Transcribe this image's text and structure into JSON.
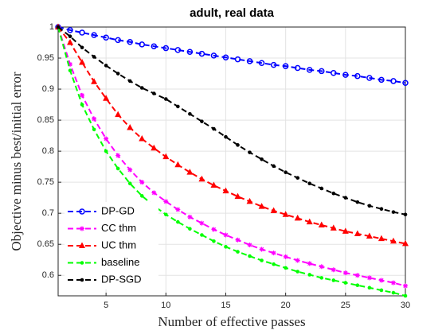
{
  "chart_data": {
    "type": "line",
    "title": "adult, real data",
    "x_label": "Number of effective passes",
    "y_label": "Objective minus best/initial error",
    "x": [
      1,
      2,
      3,
      4,
      5,
      6,
      7,
      8,
      9,
      10,
      11,
      12,
      13,
      14,
      15,
      16,
      17,
      18,
      19,
      20,
      21,
      22,
      23,
      24,
      25,
      26,
      27,
      28,
      29,
      30
    ],
    "xlim": [
      1,
      30
    ],
    "xticks": [
      5,
      10,
      15,
      20,
      25,
      30
    ],
    "ylim": [
      0.567,
      1
    ],
    "yticks": [
      0.6,
      0.65,
      0.7,
      0.75,
      0.8,
      0.85,
      0.9,
      0.95,
      1
    ],
    "grid": true,
    "legend": "lower left",
    "series": [
      {
        "name": "DP-GD",
        "color": "#0000ff",
        "marker": "circle",
        "values": [
          1,
          0.995,
          0.991,
          0.987,
          0.983,
          0.979,
          0.976,
          0.972,
          0.969,
          0.966,
          0.963,
          0.96,
          0.957,
          0.954,
          0.951,
          0.948,
          0.945,
          0.942,
          0.939,
          0.937,
          0.934,
          0.931,
          0.929,
          0.926,
          0.923,
          0.921,
          0.918,
          0.915,
          0.913,
          0.91
        ]
      },
      {
        "name": "CC thm",
        "color": "#ff00ff",
        "marker": "star",
        "values": [
          1,
          0.94,
          0.89,
          0.852,
          0.82,
          0.793,
          0.77,
          0.75,
          0.733,
          0.719,
          0.706,
          0.694,
          0.684,
          0.674,
          0.665,
          0.657,
          0.649,
          0.642,
          0.636,
          0.63,
          0.624,
          0.619,
          0.614,
          0.609,
          0.604,
          0.6,
          0.596,
          0.592,
          0.588,
          0.583
        ]
      },
      {
        "name": "UC thm",
        "color": "#ff0000",
        "marker": "triangle",
        "values": [
          1,
          0.975,
          0.943,
          0.912,
          0.885,
          0.859,
          0.838,
          0.82,
          0.805,
          0.791,
          0.778,
          0.766,
          0.755,
          0.745,
          0.736,
          0.727,
          0.719,
          0.711,
          0.704,
          0.698,
          0.692,
          0.686,
          0.681,
          0.676,
          0.671,
          0.667,
          0.663,
          0.659,
          0.655,
          0.651
        ]
      },
      {
        "name": "baseline",
        "color": "#00ff00",
        "marker": "dot",
        "values": [
          1,
          0.93,
          0.875,
          0.835,
          0.8,
          0.772,
          0.748,
          0.728,
          0.712,
          0.698,
          0.686,
          0.675,
          0.665,
          0.655,
          0.646,
          0.638,
          0.631,
          0.624,
          0.618,
          0.612,
          0.606,
          0.601,
          0.596,
          0.592,
          0.588,
          0.584,
          0.58,
          0.576,
          0.572,
          0.567
        ]
      },
      {
        "name": "DP-SGD",
        "color": "#000000",
        "marker": "dot",
        "values": [
          1,
          0.985,
          0.967,
          0.952,
          0.938,
          0.925,
          0.913,
          0.902,
          0.893,
          0.884,
          0.872,
          0.86,
          0.848,
          0.836,
          0.823,
          0.81,
          0.798,
          0.787,
          0.776,
          0.766,
          0.757,
          0.748,
          0.74,
          0.732,
          0.725,
          0.718,
          0.712,
          0.707,
          0.702,
          0.698
        ]
      }
    ]
  }
}
